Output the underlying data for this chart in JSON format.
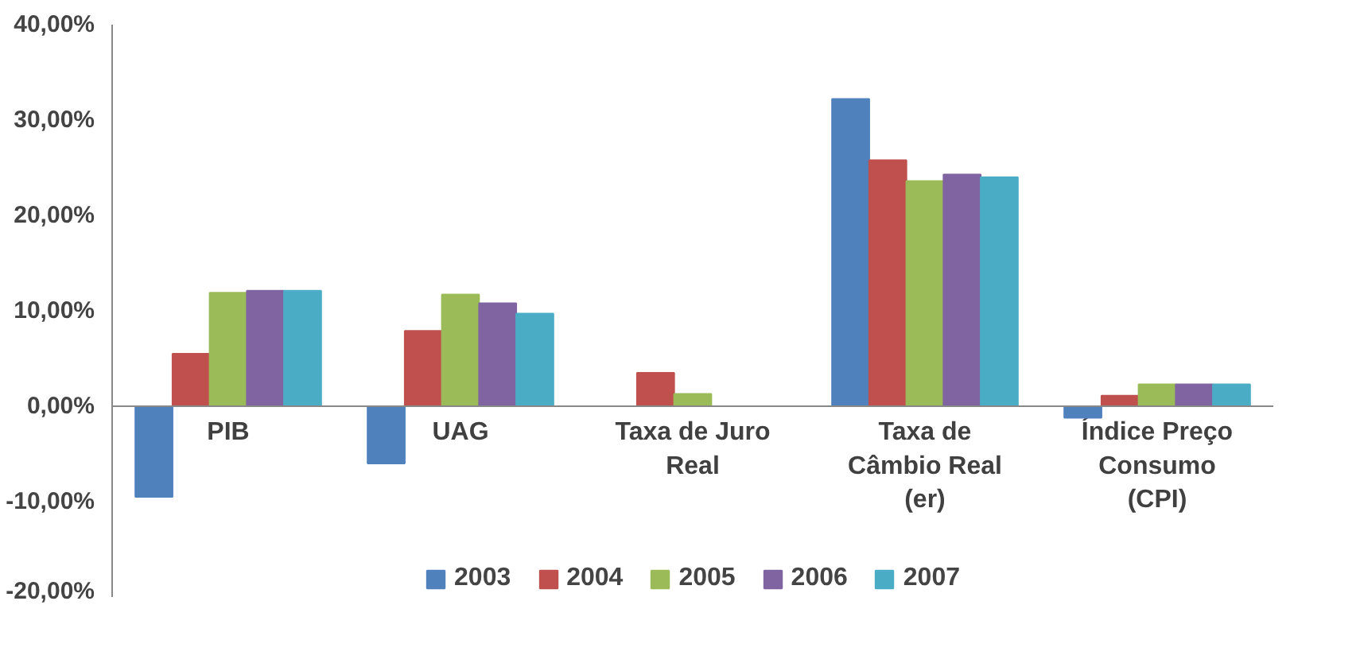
{
  "chart_data": {
    "type": "bar",
    "categories": [
      "PIB",
      "UAG",
      "Taxa de Juro Real",
      "Taxa de Câmbio Real (er)",
      "Índice Preço Consumo (CPI)"
    ],
    "series": [
      {
        "name": "2003",
        "color": "#4f81bd",
        "values": [
          -9.5,
          -6.0,
          0,
          32.2,
          -1.2
        ]
      },
      {
        "name": "2004",
        "color": "#c0504d",
        "values": [
          5.5,
          7.9,
          3.5,
          25.8,
          1.1
        ]
      },
      {
        "name": "2005",
        "color": "#9bbb59",
        "values": [
          11.9,
          11.7,
          1.3,
          23.6,
          2.3
        ]
      },
      {
        "name": "2006",
        "color": "#8064a2",
        "values": [
          12.1,
          10.8,
          0,
          24.3,
          2.3
        ]
      },
      {
        "name": "2007",
        "color": "#4bacc6",
        "values": [
          12.1,
          9.7,
          0,
          24.0,
          2.3
        ]
      }
    ],
    "ylim": [
      -20,
      40
    ],
    "yticks": [
      {
        "value": -20,
        "label": "-20,00%"
      },
      {
        "value": -10,
        "label": "-10,00%"
      },
      {
        "value": 0,
        "label": "0,00%"
      },
      {
        "value": 10,
        "label": "10,00%"
      },
      {
        "value": 20,
        "label": "20,00%"
      },
      {
        "value": 30,
        "label": "30,00%"
      },
      {
        "value": 40,
        "label": "40,00%"
      }
    ],
    "grid": false,
    "legend": "bottom"
  }
}
